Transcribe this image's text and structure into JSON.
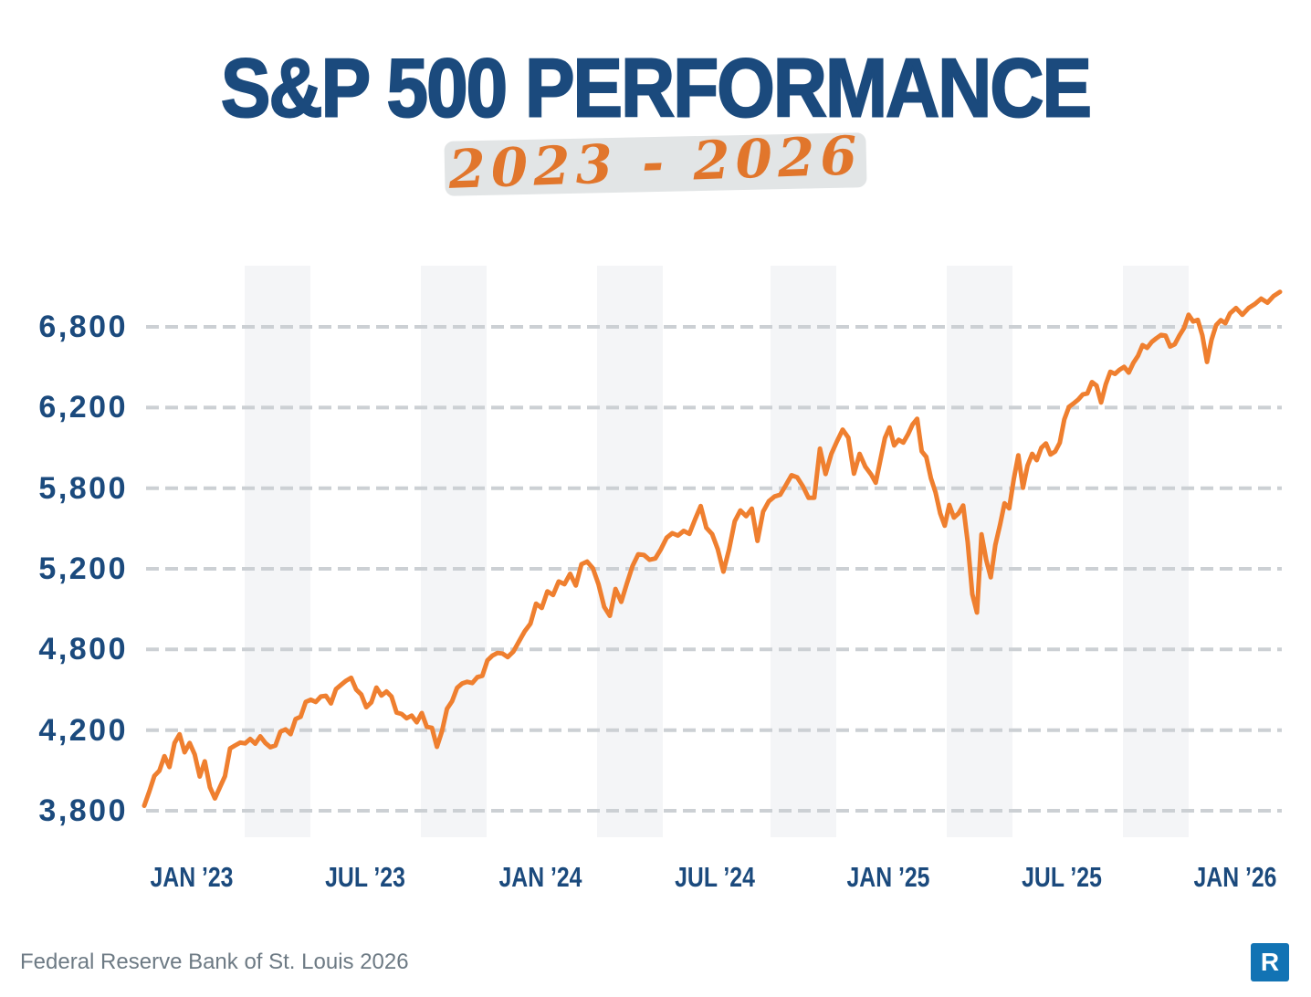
{
  "header": {
    "title": "S&P 500 PERFORMANCE",
    "subtitle": "2023 - 2026"
  },
  "footer": {
    "source": "Federal Reserve Bank of St. Louis 2026",
    "logo_letter": "R"
  },
  "colors": {
    "navy": "#1b4a7d",
    "line_orange": "#ef7f2f",
    "subtitle_orange": "#e1762c",
    "subtitle_highlight": "#e2e5e6",
    "gridline_gray": "#ccd0d4",
    "band_gray": "#f4f5f7",
    "footer_gray": "#6d7a84",
    "logo_blue": "#1273b4"
  },
  "chart_data": {
    "type": "line",
    "title": "S&P 500 PERFORMANCE",
    "subtitle": "2023 - 2026",
    "series_name": "S&P 500 index level",
    "legend": "none",
    "grid": "horizontal-dashed",
    "x_axis_unit": "months since Jan 2023",
    "y_axis_range_drawn": [
      3800,
      7060
    ],
    "x_tick_labels": [
      "JAN ’23",
      "JUL ’23",
      "JAN ’24",
      "JUL ’24",
      "JAN ’25",
      "JUL ’25",
      "JAN ’26"
    ],
    "y_ticks": [
      {
        "label": "6,800",
        "value": 6800
      },
      {
        "label": "6,200",
        "value": 6200
      },
      {
        "label": "5,800",
        "value": 5800
      },
      {
        "label": "5,200",
        "value": 5200
      },
      {
        "label": "4,800",
        "value": 4800
      },
      {
        "label": "4,200",
        "value": 4200
      },
      {
        "label": "3,800",
        "value": 3800
      }
    ],
    "segments": [
      {
        "label": "2023",
        "start_month": 0,
        "end_month": 11.83,
        "values": [
          3825,
          3895,
          3973,
          3999,
          4071,
          4017,
          4136,
          4179,
          4090,
          4136,
          4079,
          3970,
          4045,
          3917,
          3861,
          3917,
          3971,
          4109,
          4124,
          4138,
          4134,
          4156,
          4133,
          4169,
          4136,
          4115,
          4124,
          4192,
          4205,
          4180,
          4283,
          4299,
          4410,
          4426,
          4410,
          4450,
          4455,
          4399,
          4505,
          4537,
          4567,
          4589,
          4502,
          4465,
          4370,
          4406,
          4516,
          4457,
          4487,
          4450,
          4330,
          4320,
          4288,
          4308,
          4258,
          4327,
          4224,
          4217,
          4117,
          4194,
          4358,
          4415,
          4514,
          4547,
          4559,
          4550,
          4594,
          4604,
          4719,
          4754,
          4774,
          4770
        ]
      },
      {
        "label": "2024",
        "start_month": 12.0,
        "end_month": 23.81,
        "values": [
          4743,
          4784,
          4840,
          4890,
          4928,
          5027,
          5006,
          5088,
          5070,
          5137,
          5124,
          5175,
          5117,
          5234,
          5254,
          5204,
          5123,
          5011,
          4967,
          5100,
          5036,
          5128,
          5222,
          5308,
          5303,
          5267,
          5277,
          5347,
          5431,
          5465,
          5447,
          5482,
          5460,
          5567,
          5667,
          5505,
          5459,
          5346,
          5186,
          5344,
          5554,
          5634,
          5591,
          5648,
          5408,
          5626,
          5702,
          5738,
          5751,
          5815,
          5864,
          5854,
          5809,
          5728,
          5729,
          5996,
          5870,
          5969,
          6032,
          6090,
          6051,
          5872,
          5970,
          5906
        ]
      },
      {
        "label": "2025",
        "start_month": 24.0,
        "end_month": 35.85,
        "values": [
          5868,
          5827,
          5937,
          6049,
          6101,
          6012,
          6040,
          6026,
          6066,
          6115,
          6144,
          5983,
          5955,
          5849,
          5770,
          5614,
          5521,
          5675,
          5581,
          5612,
          5671,
          5397,
          5074,
          4983,
          5456,
          5268,
          5158,
          5376,
          5525,
          5687,
          5650,
          5844,
          5963,
          5802,
          5912,
          5970,
          5939,
          6000,
          6022,
          5967,
          5982,
          6025,
          6141,
          6205,
          6230,
          6259,
          6297,
          6305,
          6389,
          6363,
          6238,
          6373,
          6466,
          6450,
          6481,
          6502,
          6460,
          6532,
          6584,
          6664,
          6644,
          6688,
          6715,
          6740,
          6735,
          6654,
          6671,
          6735,
          6791,
          6890,
          6840,
          6852,
          6737,
          6539,
          6705,
          6813,
          6850,
          6827,
          6901
        ]
      },
      {
        "label": "2026",
        "start_month": 36.05,
        "end_month": 37.5,
        "values": [
          6940,
          6890,
          6940,
          6970,
          7010,
          6980,
          7030,
          7060
        ]
      }
    ]
  }
}
